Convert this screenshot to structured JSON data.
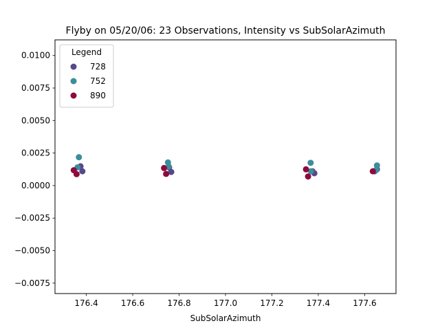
{
  "chart_data": {
    "type": "scatter",
    "title": "Flyby on 05/20/06: 23 Observations, Intensity vs SubSolarAzimuth",
    "xlabel": "SubSolarAzimuth",
    "ylabel": "",
    "xlim": [
      176.265,
      177.735
    ],
    "ylim": [
      -0.0083,
      0.0112
    ],
    "x_ticks": [
      176.4,
      176.6,
      176.8,
      177.0,
      177.2,
      177.4,
      177.6
    ],
    "x_tick_labels": [
      "176.4",
      "176.6",
      "176.8",
      "177.0",
      "177.2",
      "177.4",
      "177.6"
    ],
    "y_ticks": [
      0.01,
      0.0075,
      0.005,
      0.0025,
      0.0,
      -0.0025,
      -0.005,
      -0.0075
    ],
    "y_tick_labels": [
      "0.0100",
      "0.0075",
      "0.0050",
      "0.0025",
      "0.0000",
      "−0.0025",
      "−0.0050",
      "−0.0075"
    ],
    "grid": false,
    "legend": {
      "title": "Legend",
      "placement": "top-left"
    },
    "series": [
      {
        "name": "728",
        "color": "#55498a",
        "points": [
          [
            176.375,
            0.00148
          ],
          [
            176.383,
            0.0011
          ],
          [
            176.757,
            0.0014
          ],
          [
            176.766,
            0.00105
          ],
          [
            177.375,
            0.0011
          ],
          [
            177.383,
            0.00095
          ],
          [
            177.643,
            0.0011
          ],
          [
            177.653,
            0.00125
          ]
        ]
      },
      {
        "name": "752",
        "color": "#3b8e9c",
        "points": [
          [
            176.368,
            0.00218
          ],
          [
            176.362,
            0.0014
          ],
          [
            176.752,
            0.00178
          ],
          [
            176.755,
            0.00148
          ],
          [
            177.367,
            0.00175
          ],
          [
            177.368,
            0.0011
          ],
          [
            177.653,
            0.00155
          ],
          [
            177.65,
            0.0012
          ]
        ]
      },
      {
        "name": "890",
        "color": "#8e0a3c",
        "points": [
          [
            176.346,
            0.00118
          ],
          [
            176.358,
            0.00088
          ],
          [
            176.735,
            0.00135
          ],
          [
            176.744,
            0.0009
          ],
          [
            177.347,
            0.00125
          ],
          [
            177.356,
            0.0007
          ],
          [
            177.635,
            0.0011
          ]
        ]
      }
    ]
  }
}
